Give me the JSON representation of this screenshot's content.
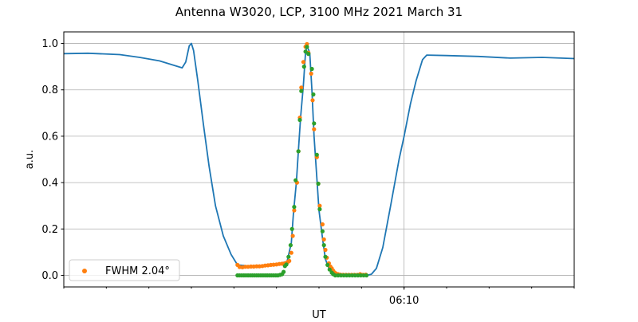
{
  "chart_data": {
    "type": "line",
    "title": "Antenna W3020, LCP, 3100 MHz 2021 March 31",
    "xlabel": "UT",
    "ylabel": "a.u.",
    "xlim": [
      "06:02:00",
      "06:14:00"
    ],
    "ylim": [
      -0.05,
      1.05
    ],
    "x_major_ticks": [
      "06:10"
    ],
    "x_minor_tick_interval": "1 min",
    "y_ticks": [
      "0.0",
      "0.2",
      "0.4",
      "0.6",
      "0.8",
      "1.0"
    ],
    "grid": true,
    "legend": {
      "placement": "lower-left",
      "entries": [
        "FWHM 2.04$^\\circ$"
      ],
      "label_text": "FWHM 2.04°"
    },
    "colors": {
      "line": "#1f77b4",
      "orange": "#ff7f0e",
      "green": "#2ca02c",
      "grid": "#b0b0b0"
    },
    "series": [
      {
        "style": "line",
        "color": "#1f77b4",
        "points": [
          [
            "06:02:00",
            0.956
          ],
          [
            "06:02:34",
            0.958
          ],
          [
            "06:03:19",
            0.952
          ],
          [
            "06:03:47",
            0.94
          ],
          [
            "06:04:15",
            0.925
          ],
          [
            "06:04:47",
            0.895
          ],
          [
            "06:04:52",
            0.92
          ],
          [
            "06:04:57",
            0.99
          ],
          [
            "06:05:00",
            1.0
          ],
          [
            "06:05:03",
            0.97
          ],
          [
            "06:05:09",
            0.84
          ],
          [
            "06:05:17",
            0.65
          ],
          [
            "06:05:25",
            0.47
          ],
          [
            "06:05:34",
            0.3
          ],
          [
            "06:05:45",
            0.17
          ],
          [
            "06:05:56",
            0.09
          ],
          [
            "06:06:05",
            0.045
          ],
          [
            "06:06:30",
            0.038
          ],
          [
            "06:06:58",
            0.045
          ],
          [
            "06:07:15",
            0.06
          ],
          [
            "06:07:21",
            0.14
          ],
          [
            "06:07:24",
            0.27
          ],
          [
            "06:07:28",
            0.4
          ],
          [
            "06:07:31",
            0.54
          ],
          [
            "06:07:34",
            0.68
          ],
          [
            "06:07:38",
            0.82
          ],
          [
            "06:07:41",
            0.96
          ],
          [
            "06:07:43",
            0.99
          ],
          [
            "06:07:47",
            0.96
          ],
          [
            "06:07:50",
            0.8
          ],
          [
            "06:07:53",
            0.6
          ],
          [
            "06:07:57",
            0.42
          ],
          [
            "06:08:00",
            0.28
          ],
          [
            "06:08:05",
            0.16
          ],
          [
            "06:08:09",
            0.07
          ],
          [
            "06:08:14",
            0.03
          ],
          [
            "06:08:23",
            0.005
          ],
          [
            "06:08:45",
            0.0
          ],
          [
            "06:09:08",
            0.0
          ],
          [
            "06:09:14",
            0.005
          ],
          [
            "06:09:21",
            0.03
          ],
          [
            "06:09:30",
            0.12
          ],
          [
            "06:09:41",
            0.3
          ],
          [
            "06:09:53",
            0.5
          ],
          [
            "06:10:00",
            0.6
          ],
          [
            "06:10:09",
            0.74
          ],
          [
            "06:10:17",
            0.84
          ],
          [
            "06:10:26",
            0.93
          ],
          [
            "06:10:32",
            0.95
          ],
          [
            "06:11:00",
            0.948
          ],
          [
            "06:11:45",
            0.944
          ],
          [
            "06:12:30",
            0.937
          ],
          [
            "06:13:15",
            0.94
          ],
          [
            "06:14:00",
            0.935
          ]
        ]
      },
      {
        "name": "FWHM 2.04°",
        "style": "scatter",
        "color": "#ff7f0e",
        "points": [
          [
            "06:06:05",
            0.045
          ],
          [
            "06:06:08",
            0.036
          ],
          [
            "06:06:12",
            0.035
          ],
          [
            "06:06:16",
            0.037
          ],
          [
            "06:06:20",
            0.037
          ],
          [
            "06:06:24",
            0.038
          ],
          [
            "06:06:28",
            0.038
          ],
          [
            "06:06:32",
            0.039
          ],
          [
            "06:06:36",
            0.039
          ],
          [
            "06:06:40",
            0.04
          ],
          [
            "06:06:44",
            0.042
          ],
          [
            "06:06:48",
            0.043
          ],
          [
            "06:06:52",
            0.045
          ],
          [
            "06:06:56",
            0.046
          ],
          [
            "06:07:00",
            0.047
          ],
          [
            "06:07:04",
            0.049
          ],
          [
            "06:07:08",
            0.05
          ],
          [
            "06:07:12",
            0.052
          ],
          [
            "06:07:16",
            0.058
          ],
          [
            "06:07:18",
            0.062
          ],
          [
            "06:07:21",
            0.097
          ],
          [
            "06:07:23",
            0.17
          ],
          [
            "06:07:25",
            0.28
          ],
          [
            "06:07:29",
            0.4
          ],
          [
            "06:07:31",
            0.535
          ],
          [
            "06:07:33",
            0.68
          ],
          [
            "06:07:35",
            0.81
          ],
          [
            "06:07:38",
            0.92
          ],
          [
            "06:07:41",
            0.986
          ],
          [
            "06:07:43",
            0.997
          ],
          [
            "06:07:45",
            0.96
          ],
          [
            "06:07:49",
            0.87
          ],
          [
            "06:07:51",
            0.755
          ],
          [
            "06:07:53",
            0.63
          ],
          [
            "06:07:57",
            0.51
          ],
          [
            "06:07:59",
            0.395
          ],
          [
            "06:08:01",
            0.3
          ],
          [
            "06:08:05",
            0.22
          ],
          [
            "06:08:07",
            0.155
          ],
          [
            "06:08:09",
            0.11
          ],
          [
            "06:08:11",
            0.076
          ],
          [
            "06:08:14",
            0.052
          ],
          [
            "06:08:16",
            0.038
          ],
          [
            "06:08:18",
            0.03
          ],
          [
            "06:08:20",
            0.02
          ],
          [
            "06:08:22",
            0.012
          ],
          [
            "06:08:24",
            0.008
          ],
          [
            "06:08:27",
            0.005
          ],
          [
            "06:08:30",
            0.003
          ],
          [
            "06:08:34",
            0.002
          ],
          [
            "06:08:38",
            0.002
          ],
          [
            "06:08:42",
            0.002
          ],
          [
            "06:08:46",
            0.002
          ],
          [
            "06:08:50",
            0.002
          ],
          [
            "06:08:54",
            0.002
          ],
          [
            "06:08:58",
            0.005
          ],
          [
            "06:09:02",
            0.002
          ],
          [
            "06:09:06",
            0.003
          ]
        ]
      },
      {
        "style": "scatter",
        "color": "#2ca02c",
        "points": [
          [
            "06:06:05",
            0
          ],
          [
            "06:06:08",
            0
          ],
          [
            "06:06:11",
            0
          ],
          [
            "06:06:14",
            0
          ],
          [
            "06:06:17",
            0
          ],
          [
            "06:06:20",
            0
          ],
          [
            "06:06:23",
            0
          ],
          [
            "06:06:26",
            0
          ],
          [
            "06:06:29",
            0
          ],
          [
            "06:06:32",
            0
          ],
          [
            "06:06:35",
            0
          ],
          [
            "06:06:38",
            0
          ],
          [
            "06:06:41",
            0
          ],
          [
            "06:06:44",
            0
          ],
          [
            "06:06:47",
            0
          ],
          [
            "06:06:50",
            0
          ],
          [
            "06:06:53",
            0
          ],
          [
            "06:06:56",
            0
          ],
          [
            "06:06:59",
            0
          ],
          [
            "06:07:02",
            0
          ],
          [
            "06:07:05",
            0.002
          ],
          [
            "06:07:08",
            0.005
          ],
          [
            "06:07:10",
            0.015
          ],
          [
            "06:07:12",
            0.04
          ],
          [
            "06:07:14",
            0.047
          ],
          [
            "06:07:17",
            0.08
          ],
          [
            "06:07:20",
            0.13
          ],
          [
            "06:07:22",
            0.2
          ],
          [
            "06:07:25",
            0.295
          ],
          [
            "06:07:27",
            0.41
          ],
          [
            "06:07:31",
            0.535
          ],
          [
            "06:07:33",
            0.67
          ],
          [
            "06:07:35",
            0.795
          ],
          [
            "06:07:39",
            0.9
          ],
          [
            "06:07:41",
            0.965
          ],
          [
            "06:07:43",
            0.985
          ],
          [
            "06:07:45",
            0.955
          ],
          [
            "06:07:50",
            0.89
          ],
          [
            "06:07:52",
            0.78
          ],
          [
            "06:07:53",
            0.655
          ],
          [
            "06:07:57",
            0.52
          ],
          [
            "06:07:59",
            0.395
          ],
          [
            "06:08:01",
            0.285
          ],
          [
            "06:08:05",
            0.19
          ],
          [
            "06:08:07",
            0.13
          ],
          [
            "06:08:09",
            0.08
          ],
          [
            "06:08:12",
            0.045
          ],
          [
            "06:08:15",
            0.025
          ],
          [
            "06:08:18",
            0.012
          ],
          [
            "06:08:20",
            0.005
          ],
          [
            "06:08:23",
            0
          ],
          [
            "06:08:27",
            0
          ],
          [
            "06:08:31",
            0
          ],
          [
            "06:08:35",
            0
          ],
          [
            "06:08:39",
            0
          ],
          [
            "06:08:43",
            0
          ],
          [
            "06:08:47",
            0
          ],
          [
            "06:08:51",
            0
          ],
          [
            "06:08:55",
            0
          ],
          [
            "06:08:59",
            0
          ],
          [
            "06:09:03",
            0
          ],
          [
            "06:09:07",
            0
          ]
        ]
      }
    ]
  }
}
